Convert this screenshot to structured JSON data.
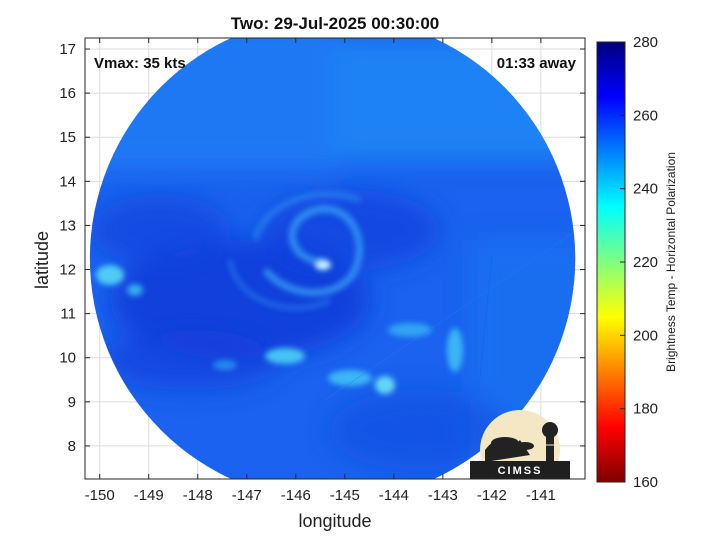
{
  "chart_data": {
    "type": "heatmap",
    "title": "Two: 29-Jul-2025 00:30:00",
    "xlabel": "longitude",
    "ylabel": "latitude",
    "xlim": [
      -150.3,
      -140.1
    ],
    "ylim": [
      7.25,
      17.25
    ],
    "xticks": [
      -150,
      -149,
      -148,
      -147,
      -146,
      -145,
      -144,
      -143,
      -142,
      -141
    ],
    "yticks": [
      8,
      9,
      10,
      11,
      12,
      13,
      14,
      15,
      16,
      17
    ],
    "grid": true,
    "annotations": {
      "top_left": "Vmax: 35 kts",
      "top_right": "01:33 away"
    },
    "swath": {
      "center_lon": -145.25,
      "center_lat": 12.25,
      "radius_deg": 4.95
    },
    "storm_center": {
      "lon": -145.2,
      "lat": 12.2
    },
    "colorbar": {
      "label": "Brightness Temp - Horizontal Polarization",
      "min": 160,
      "max": 280,
      "ticks": [
        160,
        180,
        200,
        220,
        240,
        260,
        280
      ],
      "colormap": [
        "#800000",
        "#ff0000",
        "#ff8000",
        "#ffff00",
        "#80ff80",
        "#00ffff",
        "#0080ff",
        "#0000ff",
        "#000080"
      ]
    },
    "logo_text": "CIMSS"
  }
}
